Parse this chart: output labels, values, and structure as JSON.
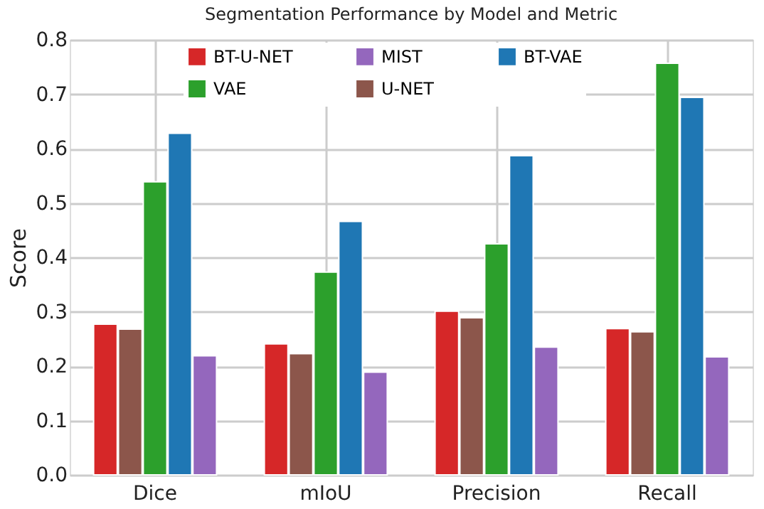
{
  "chart_data": {
    "type": "bar",
    "title": "Segmentation Performance by Model and Metric",
    "ylabel": "Score",
    "categories": [
      "Dice",
      "mIoU",
      "Precision",
      "Recall"
    ],
    "series": [
      {
        "name": "BT-U-NET",
        "color": "#d62728",
        "values": [
          0.277,
          0.241,
          0.301,
          0.269
        ]
      },
      {
        "name": "U-NET",
        "color": "#8c564b",
        "values": [
          0.268,
          0.223,
          0.289,
          0.263
        ]
      },
      {
        "name": "VAE",
        "color": "#2ca02c",
        "values": [
          0.539,
          0.373,
          0.425,
          0.757
        ]
      },
      {
        "name": "BT-VAE",
        "color": "#1f77b4",
        "values": [
          0.628,
          0.466,
          0.587,
          0.694
        ]
      },
      {
        "name": "MIST",
        "color": "#9467bd",
        "values": [
          0.219,
          0.189,
          0.235,
          0.217
        ]
      }
    ],
    "ylim": [
      0,
      0.8
    ],
    "yticks": [
      {
        "value": 0,
        "label": "0.0"
      },
      0.1,
      0.2,
      0.3,
      0.4,
      0.5,
      0.6,
      0.7,
      0.8
    ],
    "grid": true,
    "legend": "top"
  }
}
